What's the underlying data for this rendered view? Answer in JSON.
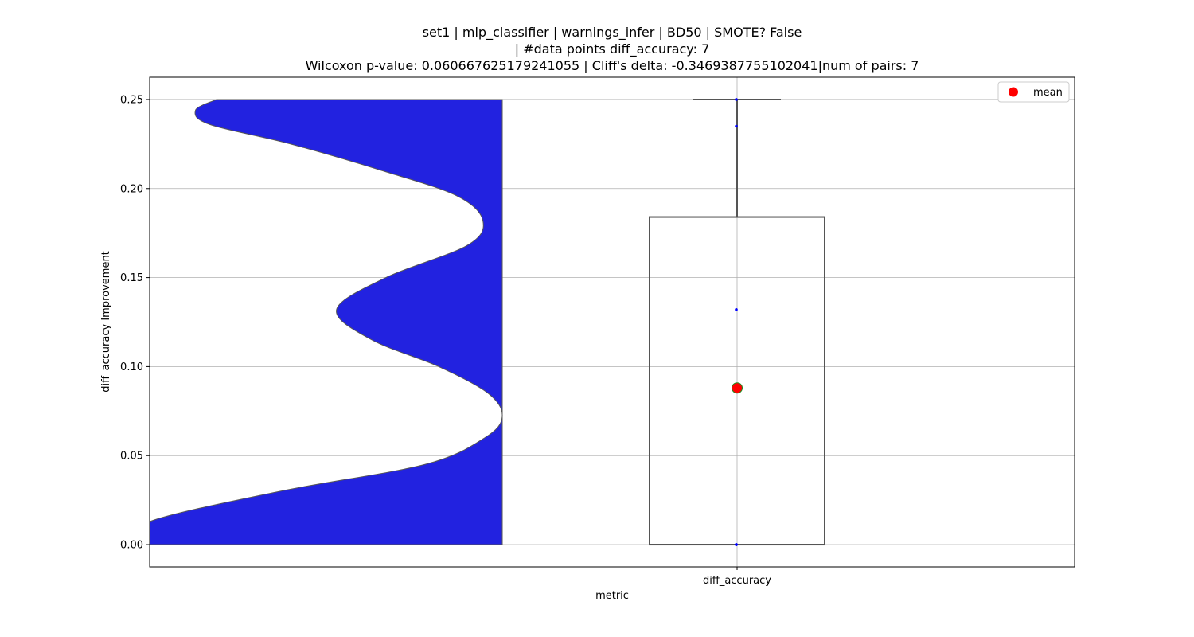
{
  "chart_data": {
    "type": "violin+box",
    "title_lines": [
      "set1 | mlp_classifier | warnings_infer | BD50 | SMOTE? False",
      "| #data points diff_accuracy: 7",
      "Wilcoxon p-value: 0.06066762517924105​5 | Cliff's delta: -0.3469387755102041|num of pairs: 7"
    ],
    "xlabel": "metric",
    "ylabel": "diff_accuracy Improvement",
    "categories": [
      "diff_accuracy"
    ],
    "ylim": [
      -0.0125,
      0.2625
    ],
    "yticks": [
      0.0,
      0.05,
      0.1,
      0.15,
      0.2,
      0.25
    ],
    "ytick_labels": [
      "0.00",
      "0.05",
      "0.10",
      "0.15",
      "0.20",
      "0.25"
    ],
    "grid": true,
    "legend": {
      "position": "top-right",
      "entries": [
        {
          "label": "mean",
          "color": "#ff0000",
          "marker": "circle"
        }
      ]
    },
    "violin": {
      "color": "#2222e0",
      "edge_color": "#555555",
      "y_range": [
        0.0,
        0.25
      ],
      "profile_y": [
        0.0,
        0.013,
        0.03,
        0.045,
        0.06,
        0.072,
        0.085,
        0.1,
        0.115,
        0.132,
        0.15,
        0.168,
        0.182,
        0.196,
        0.21,
        0.225,
        0.236,
        0.244,
        0.25
      ],
      "profile_density": [
        1.05,
        1.0,
        0.63,
        0.22,
        0.05,
        0.0,
        0.04,
        0.18,
        0.37,
        0.47,
        0.33,
        0.1,
        0.055,
        0.13,
        0.34,
        0.6,
        0.83,
        0.87,
        0.81
      ]
    },
    "box": {
      "q1": 0.0,
      "median": 0.0,
      "q3": 0.184,
      "whisker_low": 0.0,
      "whisker_high": 0.25,
      "edge_color": "#555555"
    },
    "points": [
      0.0,
      0.0,
      0.0,
      0.0,
      0.132,
      0.235,
      0.25
    ],
    "point_color": "#0000ff",
    "mean": 0.088,
    "mean_color": "#ff0000",
    "mean_edge_color": "#228b22"
  }
}
